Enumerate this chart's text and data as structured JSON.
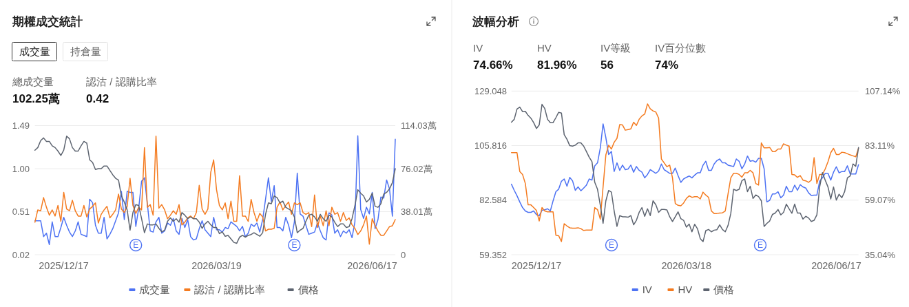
{
  "chart_data": [
    {
      "type": "line",
      "title": "期權成交統計",
      "annotations": [
        "成交量",
        "持倉量",
        "總成交量",
        "102.25萬",
        "認沽 / 認購比率",
        "0.42",
        "E",
        "E"
      ],
      "categories": [
        null,
        null,
        null,
        null,
        null,
        null,
        null,
        null,
        null,
        null,
        "2025/12/17",
        null,
        null,
        null,
        null,
        null,
        null,
        null,
        null,
        null,
        null,
        null,
        null,
        null,
        null,
        null,
        null,
        null,
        null,
        null,
        null,
        null,
        null,
        null,
        null,
        null,
        null,
        null,
        null,
        null,
        null,
        null,
        null,
        null,
        null,
        null,
        null,
        null,
        null,
        null,
        null,
        null,
        null,
        null,
        null,
        null,
        null,
        null,
        null,
        null,
        null,
        null,
        null,
        "2026/03/19",
        null,
        null,
        null,
        null,
        null,
        null,
        null,
        null,
        null,
        null,
        null,
        null,
        null,
        null,
        null,
        null,
        null,
        null,
        null,
        null,
        null,
        null,
        null,
        null,
        null,
        null,
        null,
        null,
        null,
        null,
        null,
        null,
        null,
        null,
        null,
        null,
        null,
        null,
        null,
        null,
        null,
        null,
        null,
        null,
        null,
        null,
        null,
        null,
        null,
        null,
        null,
        null,
        null,
        "2026/06/17",
        null,
        null,
        null,
        null,
        null,
        null,
        null,
        null
      ],
      "ylim": [
        0.02,
        1.49
      ],
      "yticks": [
        0.02,
        0.51,
        {
          "value": 1,
          "label": "1.00"
        },
        1.49
      ],
      "y2lim": [
        0,
        114.03
      ],
      "y2ticks": [
        0,
        {
          "value": 38.01,
          "label": "38.01萬"
        },
        {
          "value": 76.02,
          "label": "76.02萬"
        },
        {
          "value": 114.03,
          "label": "114.03萬"
        }
      ],
      "grid": "y",
      "legend": "bottom",
      "series": [
        {
          "name": "成交量",
          "color": "#4d72f3",
          "axis": "y2",
          "values": [
            30,
            30,
            30,
            16,
            19,
            9,
            29,
            16,
            16,
            24,
            33,
            26,
            20,
            16,
            21,
            29,
            18,
            17,
            16,
            49,
            46,
            26,
            19,
            19,
            33,
            14,
            18,
            23,
            30,
            37,
            56,
            31,
            56,
            55,
            55,
            25,
            41,
            65,
            68,
            45,
            21,
            20,
            29,
            33,
            19,
            21,
            28,
            26,
            32,
            21,
            18,
            32,
            24,
            31,
            16,
            13,
            14,
            23,
            30,
            22,
            19,
            16,
            33,
            22,
            22,
            20,
            24,
            23,
            29,
            27,
            25,
            21,
            25,
            16,
            19,
            27,
            25,
            28,
            20,
            31,
            49,
            68,
            47,
            61,
            24,
            24,
            21,
            33,
            26,
            15,
            29,
            72,
            36,
            34,
            26,
            18,
            19,
            20,
            28,
            21,
            15,
            13,
            37,
            35,
            19,
            22,
            16,
            21,
            19,
            22,
            15,
            29,
            105,
            40,
            32,
            42,
            36,
            55,
            23,
            31,
            51,
            50,
            66,
            58,
            34,
            102
          ]
        },
        {
          "name": "認沽 / 認購比率",
          "color": "#f47b20",
          "axis": "y",
          "values": [
            0.39,
            0.53,
            0.52,
            0.67,
            0.56,
            0.47,
            0.53,
            0.46,
            0.58,
            0.4,
            0.73,
            0.54,
            0.52,
            0.64,
            0.52,
            0.46,
            0.46,
            0.58,
            0.45,
            0.54,
            0.57,
            0.61,
            0.38,
            0.48,
            0.53,
            0.57,
            0.44,
            0.48,
            0.53,
            0.71,
            0.54,
            0.5,
            0.57,
            0.89,
            0.58,
            0.49,
            0.56,
            0.53,
            1.24,
            0.56,
            0.59,
            0.47,
            1.37,
            0.55,
            0.59,
            0.53,
            0.43,
            0.47,
            0.52,
            0.48,
            0.59,
            0.36,
            0.39,
            0.44,
            0.46,
            0.43,
            0.5,
            0.81,
            0.54,
            0.48,
            0.54,
            0.96,
            1.1,
            0.76,
            0.58,
            0.53,
            0.61,
            0.43,
            0.63,
            0.4,
            0.4,
            0.92,
            0.46,
            0.46,
            0.4,
            0.65,
            0.5,
            0.4,
            0.49,
            0.45,
            0.29,
            0.31,
            0.31,
            0.32,
            0.56,
            0.62,
            0.53,
            0.58,
            0.62,
            0.48,
            0.61,
            0.59,
            0.61,
            0.5,
            0.48,
            0.5,
            0.34,
            0.7,
            0.33,
            0.46,
            0.35,
            0.52,
            0.35,
            0.56,
            0.48,
            0.5,
            0.4,
            0.5,
            0.41,
            0.44,
            0.36,
            0.32,
            0.25,
            0.29,
            0.36,
            0.46,
            0.14,
            0.43,
            0.35,
            0.29,
            0.24,
            0.24,
            0.29,
            0.34,
            0.35,
            0.42
          ]
        },
        {
          "name": "價格",
          "color": "#5d6470",
          "axis": "y",
          "values": [
            1.21,
            1.24,
            1.32,
            1.35,
            1.31,
            1.31,
            1.26,
            1.24,
            1.2,
            1.15,
            1.21,
            1.37,
            1.34,
            1.24,
            1.2,
            1.2,
            1.26,
            1.31,
            1.29,
            1.1,
            1.07,
            0.99,
            1.0,
            1.0,
            1.03,
            1.03,
            0.98,
            0.93,
            0.89,
            0.87,
            0.69,
            0.62,
            0.53,
            0.3,
            0.5,
            0.59,
            0.58,
            0.43,
            0.27,
            0.37,
            0.36,
            0.36,
            0.37,
            0.32,
            0.28,
            0.3,
            0.4,
            0.44,
            0.4,
            0.43,
            0.39,
            0.5,
            0.47,
            0.43,
            0.45,
            0.43,
            0.43,
            0.39,
            0.32,
            0.37,
            0.4,
            0.36,
            0.33,
            0.33,
            0.26,
            0.28,
            0.23,
            0.24,
            0.2,
            0.16,
            0.15,
            0.22,
            0.24,
            0.22,
            0.24,
            0.25,
            0.27,
            0.25,
            0.23,
            0.27,
            0.48,
            0.61,
            0.6,
            0.69,
            0.67,
            0.61,
            0.63,
            0.56,
            0.54,
            0.52,
            0.45,
            0.27,
            0.3,
            0.32,
            0.4,
            0.47,
            0.48,
            0.45,
            0.4,
            0.48,
            0.43,
            0.4,
            0.47,
            0.45,
            0.39,
            0.34,
            0.37,
            0.37,
            0.33,
            0.34,
            0.43,
            0.58,
            0.76,
            0.72,
            0.69,
            0.62,
            0.65,
            0.72,
            0.57,
            0.56,
            0.6,
            0.71,
            0.73,
            0.77,
            0.84,
            1.0
          ]
        }
      ]
    },
    {
      "type": "line",
      "title": "波幅分析",
      "annotations": [
        "IV",
        "74.66%",
        "HV",
        "81.96%",
        "IV等級",
        "56",
        "IV百分位數",
        "74%",
        "E",
        "E"
      ],
      "categories": [
        null,
        null,
        null,
        null,
        null,
        null,
        null,
        null,
        null,
        "2025/12/17",
        null,
        null,
        null,
        null,
        null,
        null,
        null,
        null,
        null,
        null,
        null,
        null,
        null,
        null,
        null,
        null,
        null,
        null,
        null,
        null,
        null,
        null,
        null,
        null,
        null,
        null,
        null,
        null,
        null,
        null,
        null,
        null,
        null,
        null,
        null,
        null,
        null,
        null,
        null,
        null,
        null,
        null,
        null,
        null,
        null,
        null,
        null,
        null,
        null,
        null,
        null,
        null,
        null,
        "2026/03/18",
        null,
        null,
        null,
        null,
        null,
        null,
        null,
        null,
        null,
        null,
        null,
        null,
        null,
        null,
        null,
        null,
        null,
        null,
        null,
        null,
        null,
        null,
        null,
        null,
        null,
        null,
        null,
        null,
        null,
        null,
        null,
        null,
        null,
        null,
        null,
        null,
        null,
        null,
        null,
        null,
        null,
        null,
        null,
        null,
        null,
        null,
        null,
        null,
        null,
        null,
        null,
        null,
        null,
        "2026/06/17",
        null,
        null,
        null,
        null,
        null,
        null,
        null,
        null
      ],
      "ylim": [
        59.352,
        129.048
      ],
      "yticks": [
        59.352,
        82.584,
        105.816,
        129.048
      ],
      "y2lim": [
        35.04,
        107.14
      ],
      "y2ticks": [
        {
          "value": 35.04,
          "label": "35.04%"
        },
        {
          "value": 59.07,
          "label": "59.07%"
        },
        {
          "value": 83.11,
          "label": "83.11%"
        },
        {
          "value": 107.14,
          "label": "107.14%"
        }
      ],
      "grid": "y",
      "legend": "bottom",
      "series": [
        {
          "name": "IV",
          "color": "#4d72f3",
          "axis": "y2",
          "values": [
            66.1,
            63.4,
            61.0,
            58.3,
            55.8,
            54.3,
            53.7,
            53.7,
            54.3,
            52.7,
            52.2,
            54.6,
            54.8,
            55.3,
            54.3,
            58.8,
            62.8,
            63.9,
            67.4,
            68.4,
            65.2,
            69.1,
            67.6,
            63.4,
            64.9,
            63.2,
            64.4,
            65.7,
            68.4,
            67.9,
            74.2,
            75.5,
            82.1,
            92.7,
            86.6,
            79.2,
            80.5,
            71.7,
            75.5,
            72.2,
            74.5,
            72.5,
            72.8,
            74.5,
            71.4,
            73.9,
            72.2,
            71.4,
            68.9,
            70.4,
            72.5,
            71.7,
            70.9,
            71.9,
            75.0,
            72.5,
            71.7,
            70.9,
            70.9,
            73.2,
            69.9,
            66.9,
            68.4,
            69.1,
            69.7,
            68.9,
            70.1,
            71.1,
            71.1,
            74.5,
            76.2,
            72.2,
            72.2,
            75.0,
            76.5,
            77.2,
            75.5,
            75.5,
            74.5,
            74.2,
            73.9,
            77.2,
            76.2,
            72.9,
            75.0,
            78.5,
            76.2,
            76.5,
            75.8,
            77.5,
            77.5,
            72.9,
            58.3,
            59.0,
            61.8,
            61.8,
            62.8,
            60.1,
            61.3,
            65.2,
            62.8,
            62.8,
            65.7,
            63.4,
            65.9,
            64.9,
            64.4,
            62.3,
            61.1,
            61.3,
            61.3,
            67.4,
            68.9,
            70.9,
            70.9,
            67.9,
            71.4,
            73.8,
            71.1,
            71.7,
            71.7,
            74.2,
            70.6,
            70.6,
            70.6,
            74.7
          ]
        },
        {
          "name": "HV",
          "color": "#f47b20",
          "axis": "y2",
          "values": [
            80.0,
            80.0,
            80.0,
            71.7,
            70.4,
            66.4,
            57.0,
            57.0,
            55.8,
            54.5,
            49.9,
            55.8,
            54.3,
            53.9,
            53.9,
            53.9,
            43.6,
            43.4,
            40.8,
            48.7,
            47.7,
            46.9,
            46.7,
            46.7,
            46.9,
            46.5,
            45.7,
            45.9,
            45.9,
            45.9,
            55.8,
            54.9,
            50.7,
            64.9,
            79.0,
            83.3,
            81.6,
            84.6,
            86.3,
            92.4,
            92.2,
            89.9,
            90.2,
            90.5,
            93.4,
            92.0,
            94.7,
            96.2,
            97.0,
            101.5,
            99.3,
            98.4,
            97.9,
            95.2,
            77.2,
            75.5,
            73.8,
            74.5,
            68.9,
            57.6,
            56.8,
            56.6,
            57.8,
            59.8,
            61.0,
            60.3,
            60.6,
            60.6,
            59.6,
            62.6,
            61.3,
            60.3,
            54.3,
            53.2,
            53.2,
            53.4,
            53.5,
            54.3,
            61.8,
            68.9,
            70.9,
            70.9,
            70.4,
            69.2,
            71.1,
            71.1,
            72.2,
            71.1,
            66.4,
            65.7,
            84.3,
            82.1,
            82.1,
            82.3,
            80.5,
            80.5,
            81.6,
            81.6,
            83.9,
            83.3,
            82.9,
            70.4,
            70.2,
            69.1,
            69.9,
            67.9,
            67.6,
            66.9,
            67.9,
            77.8,
            66.4,
            70.4,
            70.4,
            72.8,
            76.0,
            80.0,
            81.9,
            79.2,
            79.2,
            80.2,
            80.0,
            79.5,
            79.0,
            78.6,
            78.2,
            81.9
          ]
        },
        {
          "name": "價格",
          "color": "#5d6470",
          "axis": "y",
          "values": [
            115.8,
            117.0,
            121.4,
            122.2,
            120.3,
            120.4,
            118.7,
            117.5,
            115.6,
            113.1,
            114.6,
            123.4,
            121.6,
            117.0,
            115.6,
            115.6,
            117.7,
            120.0,
            119.7,
            110.5,
            108.5,
            105.8,
            105.6,
            106.0,
            107.0,
            107.0,
            105.6,
            103.3,
            100.9,
            99.0,
            90.2,
            87.2,
            80.4,
            72.7,
            82.3,
            86.7,
            86.0,
            77.9,
            71.4,
            76.0,
            75.5,
            75.5,
            75.3,
            76.0,
            72.1,
            74.0,
            77.4,
            79.4,
            75.7,
            78.9,
            76.0,
            82.3,
            80.6,
            77.4,
            78.6,
            78.6,
            78.4,
            75.5,
            73.5,
            75.5,
            77.6,
            74.7,
            74.0,
            71.1,
            72.4,
            69.1,
            72.3,
            70.4,
            66.2,
            64.9,
            69.6,
            70.1,
            69.1,
            69.8,
            70.0,
            72.1,
            70.1,
            69.1,
            71.8,
            76.9,
            87.2,
            86.7,
            87.2,
            90.9,
            91.6,
            86.2,
            88.5,
            83.3,
            84.8,
            84.1,
            82.3,
            71.4,
            72.7,
            73.7,
            76.5,
            77.1,
            78.6,
            76.3,
            77.4,
            80.9,
            78.9,
            77.0,
            80.9,
            77.1,
            77.1,
            74.5,
            75.7,
            75.0,
            73.5,
            74.0,
            76.3,
            88.2,
            94.3,
            91.1,
            88.2,
            83.1,
            88.2,
            82.6,
            85.1,
            83.6,
            86.2,
            92.1,
            92.9,
            98.0,
            97.0,
            105.0
          ]
        }
      ]
    }
  ]
}
